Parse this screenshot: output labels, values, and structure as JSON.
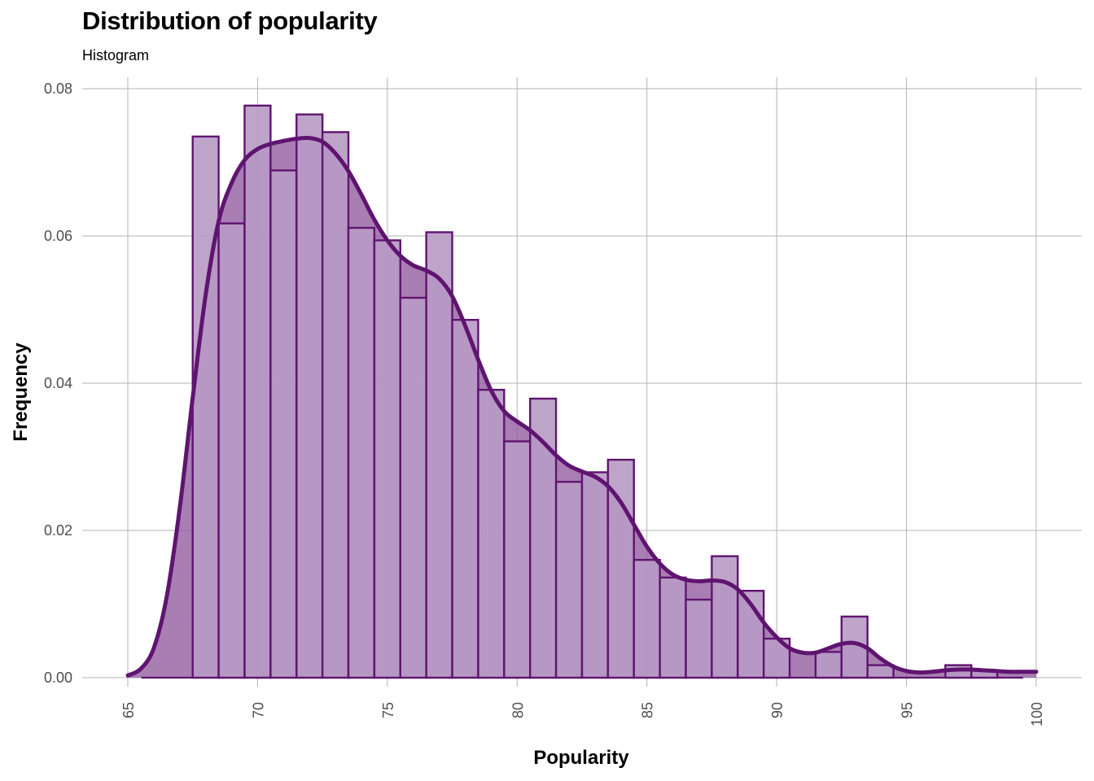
{
  "chart_data": {
    "type": "bar",
    "title": "Distribution of popularity",
    "subtitle": "Histogram",
    "xlabel": "Popularity",
    "ylabel": "Frequency",
    "xlim": [
      64.5,
      100.5
    ],
    "ylim": [
      0,
      0.0815
    ],
    "x_ticks": [
      65,
      70,
      75,
      80,
      85,
      90,
      95,
      100
    ],
    "y_ticks": [
      0.0,
      0.02,
      0.04,
      0.06,
      0.08
    ],
    "y_tick_labels": [
      "0.00",
      "0.02",
      "0.04",
      "0.06",
      "0.08"
    ],
    "grid": true,
    "legend": "none",
    "colors": {
      "fill": "#b89ac4",
      "stroke": "#5f1470",
      "density_fill": "#8f5a9e",
      "grid": "#b3b3b3"
    },
    "series": [
      {
        "kind": "histogram",
        "bins": [
          {
            "x0": 67.5,
            "x1": 68.5,
            "value": 0.0735
          },
          {
            "x0": 68.5,
            "x1": 69.5,
            "value": 0.0617
          },
          {
            "x0": 69.5,
            "x1": 70.5,
            "value": 0.0777
          },
          {
            "x0": 70.5,
            "x1": 71.5,
            "value": 0.0689
          },
          {
            "x0": 71.5,
            "x1": 72.5,
            "value": 0.0765
          },
          {
            "x0": 72.5,
            "x1": 73.5,
            "value": 0.0741
          },
          {
            "x0": 73.5,
            "x1": 74.5,
            "value": 0.0611
          },
          {
            "x0": 74.5,
            "x1": 75.5,
            "value": 0.0594
          },
          {
            "x0": 75.5,
            "x1": 76.5,
            "value": 0.0516
          },
          {
            "x0": 76.5,
            "x1": 77.5,
            "value": 0.0605
          },
          {
            "x0": 77.5,
            "x1": 78.5,
            "value": 0.0486
          },
          {
            "x0": 78.5,
            "x1": 79.5,
            "value": 0.0391
          },
          {
            "x0": 79.5,
            "x1": 80.5,
            "value": 0.0321
          },
          {
            "x0": 80.5,
            "x1": 81.5,
            "value": 0.0379
          },
          {
            "x0": 81.5,
            "x1": 82.5,
            "value": 0.0266
          },
          {
            "x0": 82.5,
            "x1": 83.5,
            "value": 0.0279
          },
          {
            "x0": 83.5,
            "x1": 84.5,
            "value": 0.0296
          },
          {
            "x0": 84.5,
            "x1": 85.5,
            "value": 0.016
          },
          {
            "x0": 85.5,
            "x1": 86.5,
            "value": 0.0136
          },
          {
            "x0": 86.5,
            "x1": 87.5,
            "value": 0.0106
          },
          {
            "x0": 87.5,
            "x1": 88.5,
            "value": 0.0165
          },
          {
            "x0": 88.5,
            "x1": 89.5,
            "value": 0.0118
          },
          {
            "x0": 89.5,
            "x1": 90.5,
            "value": 0.0053
          },
          {
            "x0": 90.5,
            "x1": 91.5,
            "value": 0.0
          },
          {
            "x0": 91.5,
            "x1": 92.5,
            "value": 0.0035
          },
          {
            "x0": 92.5,
            "x1": 93.5,
            "value": 0.0083
          },
          {
            "x0": 93.5,
            "x1": 94.5,
            "value": 0.0017
          },
          {
            "x0": 94.5,
            "x1": 95.5,
            "value": 0.0
          },
          {
            "x0": 95.5,
            "x1": 96.5,
            "value": 0.0
          },
          {
            "x0": 96.5,
            "x1": 97.5,
            "value": 0.0017
          },
          {
            "x0": 97.5,
            "x1": 98.5,
            "value": 0.001
          },
          {
            "x0": 98.5,
            "x1": 99.5,
            "value": 0.0
          }
        ]
      },
      {
        "kind": "density",
        "points": [
          [
            65.0,
            0.0003
          ],
          [
            65.5,
            0.0012
          ],
          [
            66.0,
            0.004
          ],
          [
            66.5,
            0.011
          ],
          [
            67.0,
            0.023
          ],
          [
            67.5,
            0.038
          ],
          [
            68.0,
            0.052
          ],
          [
            68.5,
            0.062
          ],
          [
            69.0,
            0.0672
          ],
          [
            69.5,
            0.0703
          ],
          [
            70.0,
            0.0718
          ],
          [
            70.5,
            0.0725
          ],
          [
            71.0,
            0.0729
          ],
          [
            71.5,
            0.0732
          ],
          [
            72.0,
            0.0733
          ],
          [
            72.5,
            0.0728
          ],
          [
            73.0,
            0.0712
          ],
          [
            73.5,
            0.0688
          ],
          [
            74.0,
            0.0656
          ],
          [
            74.5,
            0.0622
          ],
          [
            75.0,
            0.0594
          ],
          [
            75.5,
            0.0573
          ],
          [
            76.0,
            0.056
          ],
          [
            76.5,
            0.0553
          ],
          [
            77.0,
            0.0542
          ],
          [
            77.5,
            0.0518
          ],
          [
            78.0,
            0.0478
          ],
          [
            78.5,
            0.0432
          ],
          [
            79.0,
            0.039
          ],
          [
            79.5,
            0.0362
          ],
          [
            80.0,
            0.0348
          ],
          [
            80.5,
            0.0336
          ],
          [
            81.0,
            0.032
          ],
          [
            81.5,
            0.0302
          ],
          [
            82.0,
            0.0288
          ],
          [
            82.5,
            0.028
          ],
          [
            83.0,
            0.0273
          ],
          [
            83.5,
            0.026
          ],
          [
            84.0,
            0.0238
          ],
          [
            84.5,
            0.0208
          ],
          [
            85.0,
            0.0178
          ],
          [
            85.5,
            0.0155
          ],
          [
            86.0,
            0.014
          ],
          [
            86.5,
            0.0133
          ],
          [
            87.0,
            0.0131
          ],
          [
            87.5,
            0.0132
          ],
          [
            88.0,
            0.013
          ],
          [
            88.5,
            0.012
          ],
          [
            89.0,
            0.01
          ],
          [
            89.5,
            0.0075
          ],
          [
            90.0,
            0.0055
          ],
          [
            90.5,
            0.004
          ],
          [
            91.0,
            0.0034
          ],
          [
            91.5,
            0.0034
          ],
          [
            92.0,
            0.004
          ],
          [
            92.5,
            0.0046
          ],
          [
            93.0,
            0.0047
          ],
          [
            93.5,
            0.004
          ],
          [
            94.0,
            0.0026
          ],
          [
            94.5,
            0.0015
          ],
          [
            95.0,
            0.0009
          ],
          [
            95.5,
            0.0007
          ],
          [
            96.0,
            0.0008
          ],
          [
            96.5,
            0.001
          ],
          [
            97.0,
            0.0011
          ],
          [
            97.5,
            0.0011
          ],
          [
            98.0,
            0.001
          ],
          [
            98.5,
            0.0009
          ],
          [
            99.0,
            0.0008
          ],
          [
            99.5,
            0.0008
          ],
          [
            100.0,
            0.0008
          ]
        ]
      }
    ]
  }
}
